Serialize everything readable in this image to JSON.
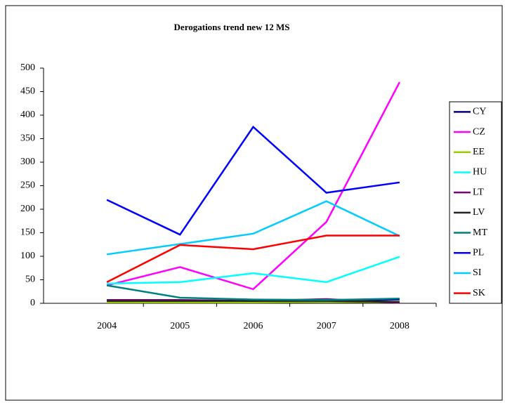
{
  "chart_data": {
    "type": "line",
    "title": "Derogations trend new 12 MS",
    "categories": [
      "2004",
      "2005",
      "2006",
      "2007",
      "2008"
    ],
    "series": [
      {
        "name": "CY",
        "color": "#000080",
        "values": [
          5,
          5,
          5,
          5,
          8
        ]
      },
      {
        "name": "CZ",
        "color": "#ff00ff",
        "values": [
          38,
          77,
          30,
          173,
          470
        ]
      },
      {
        "name": "EE",
        "color": "#99cc00",
        "values": [
          2,
          2,
          2,
          3,
          2
        ]
      },
      {
        "name": "HU",
        "color": "#00ffff",
        "values": [
          42,
          45,
          64,
          45,
          99
        ]
      },
      {
        "name": "LT",
        "color": "#800080",
        "values": [
          7,
          7,
          5,
          9,
          1
        ]
      },
      {
        "name": "LV",
        "color": "#222222",
        "values": [
          5,
          5,
          5,
          5,
          3
        ]
      },
      {
        "name": "MT",
        "color": "#008080",
        "values": [
          38,
          12,
          8,
          7,
          10
        ]
      },
      {
        "name": "PL",
        "color": "#0000ff",
        "values": [
          220,
          146,
          375,
          235,
          257
        ]
      },
      {
        "name": "SI",
        "color": "#00ccff",
        "values": [
          104,
          126,
          148,
          217,
          143
        ]
      },
      {
        "name": "SK",
        "color": "#ff0000",
        "values": [
          45,
          124,
          115,
          144,
          144
        ]
      }
    ],
    "ylim": [
      0,
      500
    ],
    "yticks": [
      0,
      50,
      100,
      150,
      200,
      250,
      300,
      350,
      400,
      450,
      500
    ],
    "grid": false,
    "legend": "right"
  }
}
